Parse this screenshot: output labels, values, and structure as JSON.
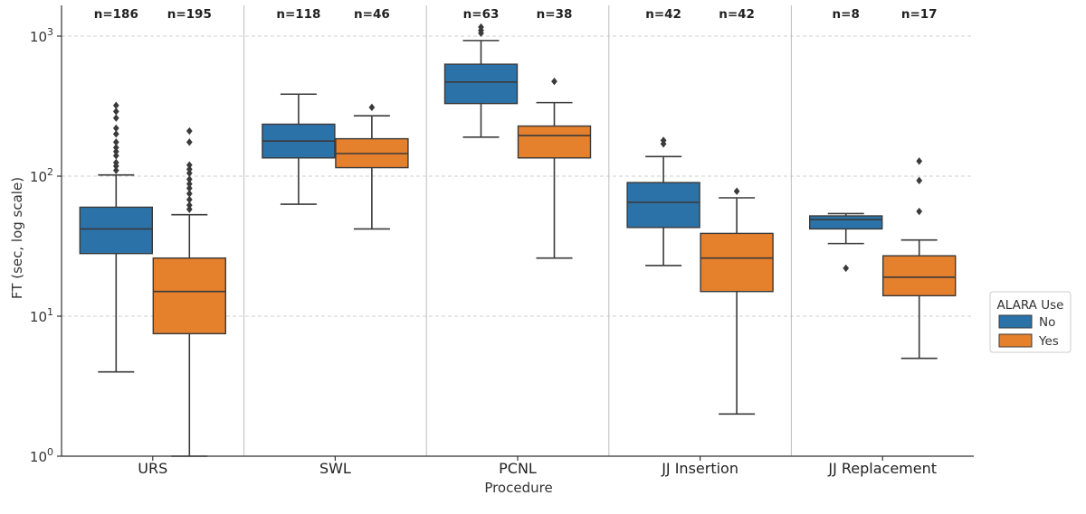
{
  "chart_data": {
    "type": "box",
    "xlabel": "Procedure",
    "ylabel": "FT (sec, log scale)",
    "yscale": "log",
    "ylim": [
      1,
      1500
    ],
    "yticks": [
      {
        "value": 1,
        "label": "10^0"
      },
      {
        "value": 10,
        "label": "10^1"
      },
      {
        "value": 100,
        "label": "10^2"
      },
      {
        "value": 1000,
        "label": "10^3"
      }
    ],
    "categories": [
      "URS",
      "SWL",
      "PCNL",
      "JJ Insertion",
      "JJ Replacement"
    ],
    "hue_label": "ALARA Use",
    "series": [
      {
        "name": "No",
        "color": "#2b72a8",
        "boxes": [
          {
            "n_label": "n=186",
            "whislo": 4,
            "q1": 28,
            "med": 42,
            "q3": 60,
            "whishi": 102,
            "fliers": [
              110,
              118,
              125,
              140,
              150,
              160,
              175,
              200,
              220,
              260,
              290,
              320
            ]
          },
          {
            "n_label": "n=118",
            "whislo": 63,
            "q1": 135,
            "med": 178,
            "q3": 235,
            "whishi": 385,
            "fliers": []
          },
          {
            "n_label": "n=63",
            "whislo": 190,
            "q1": 330,
            "med": 470,
            "q3": 630,
            "whishi": 930,
            "fliers": [
              1050,
              1100,
              1160
            ]
          },
          {
            "n_label": "n=42",
            "whislo": 23,
            "q1": 43,
            "med": 65,
            "q3": 90,
            "whishi": 138,
            "fliers": [
              170,
              180
            ]
          },
          {
            "n_label": "n=8",
            "whislo": 33,
            "q1": 42,
            "med": 49,
            "q3": 52,
            "whishi": 54,
            "fliers": [
              22
            ]
          }
        ]
      },
      {
        "name": "Yes",
        "color": "#e5802d",
        "boxes": [
          {
            "n_label": "n=195",
            "whislo": 1,
            "q1": 7.5,
            "med": 15,
            "q3": 26,
            "whishi": 53,
            "fliers": [
              58,
              62,
              68,
              75,
              82,
              88,
              95,
              105,
              112,
              120,
              175,
              210
            ]
          },
          {
            "n_label": "n=46",
            "whislo": 42,
            "q1": 115,
            "med": 145,
            "q3": 185,
            "whishi": 270,
            "fliers": [
              310
            ]
          },
          {
            "n_label": "n=38",
            "whislo": 26,
            "q1": 135,
            "med": 195,
            "q3": 228,
            "whishi": 335,
            "fliers": [
              475
            ]
          },
          {
            "n_label": "n=42",
            "whislo": 2,
            "q1": 15,
            "med": 26,
            "q3": 39,
            "whishi": 70,
            "fliers": [
              78
            ]
          },
          {
            "n_label": "n=17",
            "whislo": 5,
            "q1": 14,
            "med": 19,
            "q3": 27,
            "whishi": 35,
            "fliers": [
              56,
              93,
              128
            ]
          }
        ]
      }
    ],
    "legend": {
      "title": "ALARA Use",
      "position": "right",
      "entries": [
        "No",
        "Yes"
      ]
    },
    "grid": "horizontal dashed at decades"
  }
}
